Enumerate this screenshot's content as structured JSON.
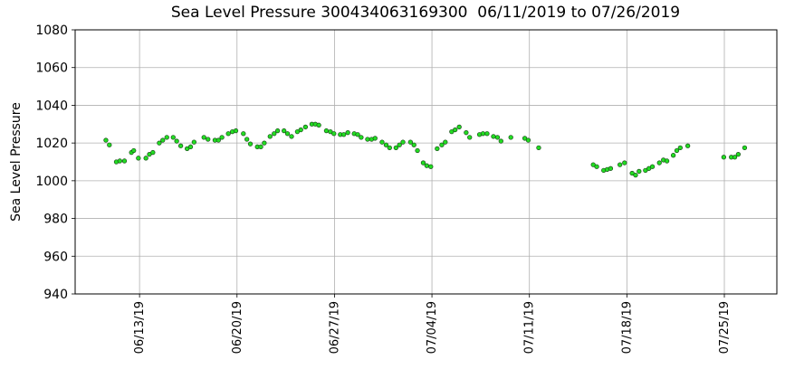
{
  "chart_data": {
    "type": "scatter",
    "title": "Sea Level Pressure 300434063169300  06/11/2019 to 07/26/2019",
    "y_label": "Sea Level Pressure",
    "ylim": [
      940,
      1080
    ],
    "yticks": [
      940,
      960,
      980,
      1000,
      1020,
      1040,
      1060,
      1080
    ],
    "xlim": [
      "06/08/19 09:00",
      "07/28/19 18:30"
    ],
    "xticks": [
      "06/13/19",
      "06/20/19",
      "06/27/19",
      "07/04/19",
      "07/11/19",
      "07/18/19",
      "07/25/19"
    ],
    "grid": true,
    "series": [
      {
        "color": "#22dd22",
        "x": [
          "06/10/19 14:00",
          "06/10/19 20:00",
          "06/11/19 08:00",
          "06/11/19 14:00",
          "06/11/19 22:00",
          "06/12/19 10:00",
          "06/12/19 14:00",
          "06/12/19 22:00",
          "06/13/19 11:00",
          "06/13/19 17:00",
          "06/13/19 23:00",
          "06/14/19 10:00",
          "06/14/19 16:00",
          "06/14/19 23:00",
          "06/15/19 10:00",
          "06/15/19 16:00",
          "06/15/19 23:00",
          "06/16/19 10:00",
          "06/16/19 16:00",
          "06/16/19 22:00",
          "06/17/19 15:00",
          "06/17/19 22:00",
          "06/18/19 10:00",
          "06/18/19 16:00",
          "06/18/19 22:00",
          "06/19/19 09:00",
          "06/19/19 16:00",
          "06/19/19 22:00",
          "06/20/19 11:00",
          "06/20/19 17:00",
          "06/20/19 23:00",
          "06/21/19 11:00",
          "06/21/19 17:00",
          "06/21/19 23:00",
          "06/22/19 09:00",
          "06/22/19 16:00",
          "06/22/19 22:00",
          "06/23/19 09:00",
          "06/23/19 15:00",
          "06/23/19 22:00",
          "06/24/19 08:00",
          "06/24/19 14:00",
          "06/24/19 22:00",
          "06/25/19 09:00",
          "06/25/19 15:00",
          "06/25/19 21:00",
          "06/26/19 10:00",
          "06/26/19 17:00",
          "06/26/19 23:00",
          "06/27/19 10:00",
          "06/27/19 16:00",
          "06/27/19 23:00",
          "06/28/19 10:00",
          "06/28/19 16:00",
          "06/28/19 22:00",
          "06/29/19 09:00",
          "06/29/19 16:00",
          "06/29/19 22:00",
          "06/30/19 10:00",
          "06/30/19 17:00",
          "06/30/19 23:00",
          "07/01/19 10:00",
          "07/01/19 16:00",
          "07/01/19 22:00",
          "07/02/19 11:00",
          "07/02/19 17:00",
          "07/02/19 23:00",
          "07/03/19 09:00",
          "07/03/19 15:00",
          "07/03/19 22:00",
          "07/04/19 09:00",
          "07/04/19 17:00",
          "07/04/19 23:00",
          "07/05/19 10:00",
          "07/05/19 16:00",
          "07/05/19 23:00",
          "07/06/19 11:00",
          "07/06/19 17:00",
          "07/07/19 10:00",
          "07/07/19 16:00",
          "07/07/19 23:00",
          "07/08/19 10:00",
          "07/08/19 17:00",
          "07/08/19 23:00",
          "07/09/19 16:00",
          "07/10/19 16:00",
          "07/10/19 22:00",
          "07/11/19 16:00",
          "07/15/19 14:00",
          "07/15/19 20:00",
          "07/16/19 08:00",
          "07/16/19 14:00",
          "07/16/19 20:00",
          "07/17/19 12:00",
          "07/17/19 20:00",
          "07/18/19 09:00",
          "07/18/19 15:00",
          "07/18/19 21:00",
          "07/19/19 08:00",
          "07/19/19 14:00",
          "07/19/19 20:00",
          "07/20/19 08:00",
          "07/20/19 15:00",
          "07/20/19 21:00",
          "07/21/19 08:00",
          "07/21/19 14:00",
          "07/21/19 20:00",
          "07/22/19 09:00",
          "07/24/19 23:00",
          "07/25/19 12:00",
          "07/25/19 18:00",
          "07/26/19 00:00",
          "07/26/19 11:00"
        ],
        "values": [
          1021.5,
          1019,
          1010,
          1010.5,
          1010.5,
          1015,
          1016,
          1012,
          1012,
          1014,
          1015,
          1020,
          1021.5,
          1023,
          1023,
          1021,
          1018.5,
          1017,
          1018,
          1020.5,
          1023,
          1022,
          1021.5,
          1021.5,
          1023,
          1025,
          1026,
          1026.5,
          1025,
          1022,
          1019.5,
          1018,
          1018,
          1020,
          1023.5,
          1025,
          1026.5,
          1026.5,
          1025,
          1023.5,
          1026,
          1027,
          1028.5,
          1030,
          1030,
          1029.5,
          1026.5,
          1026,
          1025,
          1024.5,
          1024.5,
          1025.5,
          1025,
          1024.5,
          1023,
          1022,
          1022,
          1022.5,
          1020.5,
          1019,
          1017.5,
          1017.5,
          1019,
          1020.5,
          1020.5,
          1019,
          1016,
          1009.5,
          1008,
          1007.5,
          1017,
          1019,
          1020.5,
          1026,
          1027,
          1028.5,
          1025.5,
          1023,
          1024.5,
          1025,
          1025,
          1023.5,
          1023,
          1021,
          1023,
          1022.5,
          1021.5,
          1017.5,
          1008.5,
          1007.5,
          1005.5,
          1006,
          1006.5,
          1008.5,
          1009.5,
          1004,
          1003,
          1005,
          1005.5,
          1006.5,
          1007.5,
          1009.5,
          1011,
          1010.5,
          1013.5,
          1016,
          1017.5,
          1018.5,
          1012.5,
          1012.5,
          1012.5,
          1014,
          1017.5
        ]
      }
    ]
  }
}
